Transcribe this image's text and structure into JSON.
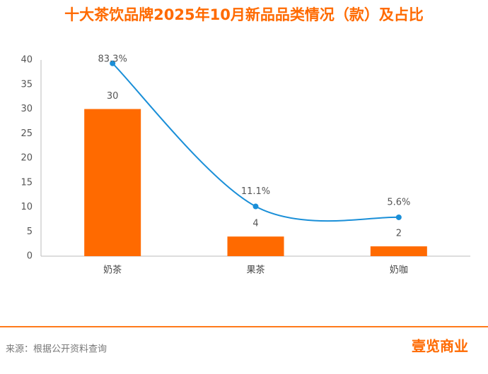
{
  "chart_data": {
    "type": "bar_line",
    "title": "十大茶饮品牌2025年10月新品品类情况（款）及占比",
    "categories": [
      "奶茶",
      "果茶",
      "奶咖"
    ],
    "series": [
      {
        "type": "bar",
        "color": "#ff6a00",
        "values": [
          30,
          4,
          2
        ]
      },
      {
        "type": "line",
        "axis": "y2",
        "color": "#1a8fd8",
        "values": [
          83.3,
          11.1,
          5.6
        ],
        "value_labels": [
          "83.3%",
          "11.1%",
          "5.6%"
        ]
      }
    ],
    "ylim": [
      0,
      40
    ],
    "yticks": [
      0,
      5,
      10,
      15,
      20,
      25,
      30,
      35,
      40
    ],
    "y2lim": [
      -14,
      85
    ]
  },
  "footer": {
    "source": "来源：根据公开资料查询",
    "logo": "壹览商业"
  }
}
